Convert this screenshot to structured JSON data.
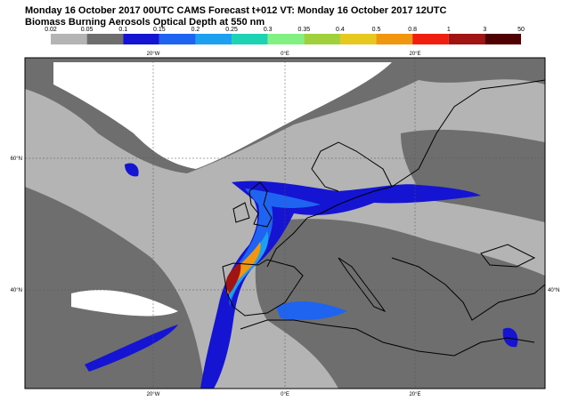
{
  "header": {
    "line1": "Monday 16 October 2017 00UTC CAMS Forecast t+012 VT: Monday 16 October 2017 12UTC",
    "line2": "Biomass Burning Aerosols Optical Depth at 550 nm"
  },
  "colorbar": {
    "labels": [
      "0.02",
      "0.05",
      "0.1",
      "0.15",
      "0.2",
      "0.25",
      "0.3",
      "0.35",
      "0.4",
      "0.5",
      "0.8",
      "1",
      "3",
      "50"
    ],
    "colors": [
      "#b4b4b4",
      "#6e6e6e",
      "#1414d2",
      "#1e64f0",
      "#1ea0f0",
      "#1ed2b4",
      "#82f082",
      "#a0d03c",
      "#e6c81e",
      "#f0960f",
      "#f01e0f",
      "#a01414",
      "#500000"
    ]
  },
  "map": {
    "top_labels": [
      "20°W",
      "0°E",
      "20°E"
    ],
    "bottom_labels": [
      "20°W",
      "0°E",
      "20°E"
    ],
    "left_labels": [
      "60°N",
      "40°N"
    ],
    "right_labels": [
      "40°N"
    ]
  }
}
